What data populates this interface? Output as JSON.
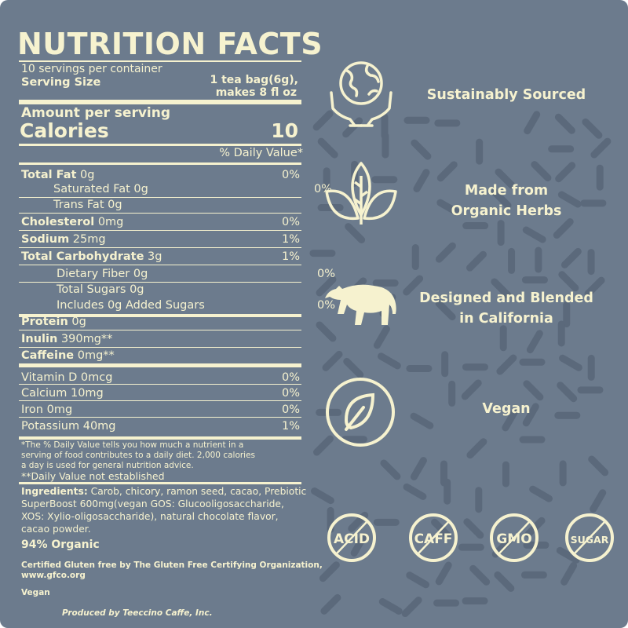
{
  "colors": {
    "background": "#6c7b8d",
    "text": "#f6f2cf",
    "pattern": "#5b697b"
  },
  "label": {
    "title": "NUTRITION FACTS",
    "servings": "10 servings per container",
    "serving_size_label": "Serving Size",
    "serving_size_value_1": "1 tea bag(6g),",
    "serving_size_value_2": "makes 8 fl oz",
    "amount_per_serving": "Amount per serving",
    "calories_label": "Calories",
    "calories_value": "10",
    "daily_value_header": "% Daily Value*",
    "nutrients": [
      {
        "name": "Total Fat",
        "amount": "0g",
        "dv": "0%",
        "bold": true,
        "indent": 0
      },
      {
        "name": "Saturated Fat 0g",
        "amount": "",
        "dv": "0%",
        "bold": false,
        "indent": 1
      },
      {
        "name": "Trans Fat 0g",
        "amount": "",
        "dv": "",
        "bold": false,
        "indent": 1
      },
      {
        "name": "Cholesterol",
        "amount": "0mg",
        "dv": "0%",
        "bold": true,
        "indent": 0
      },
      {
        "name": "Sodium",
        "amount": "25mg",
        "dv": "1%",
        "bold": true,
        "indent": 0
      },
      {
        "name": "Total Carbohydrate",
        "amount": "3g",
        "dv": "1%",
        "bold": true,
        "indent": 0
      },
      {
        "name": "Dietary Fiber 0g",
        "amount": "",
        "dv": "0%",
        "bold": false,
        "indent": 1
      },
      {
        "name": "Total Sugars 0g",
        "amount": "",
        "dv": "",
        "bold": false,
        "indent": 1
      },
      {
        "name": "Includes 0g Added Sugars",
        "amount": "",
        "dv": "0%",
        "bold": false,
        "indent": 1
      },
      {
        "name": "Protein",
        "amount": "0g",
        "dv": "",
        "bold": true,
        "indent": 0
      },
      {
        "name": "Inulin",
        "amount": "390mg**",
        "dv": "",
        "bold": true,
        "indent": 0
      },
      {
        "name": "Caffeine",
        "amount": "0mg**",
        "dv": "",
        "bold": true,
        "indent": 0
      },
      {
        "name": "Vitamin D 0mcg",
        "amount": "",
        "dv": "0%",
        "bold": false,
        "indent": 0
      },
      {
        "name": "Calcium 10mg",
        "amount": "",
        "dv": "0%",
        "bold": false,
        "indent": 0
      },
      {
        "name": "Iron  0mg",
        "amount": "",
        "dv": "0%",
        "bold": false,
        "indent": 0
      },
      {
        "name": "Potassium  40mg",
        "amount": "",
        "dv": "1%",
        "bold": false,
        "indent": 0
      }
    ],
    "footnote_1": "*The % Daily Value tells you how much a nutrient in a",
    "footnote_2": "serving of food contributes to a daily diet. 2,000 calories",
    "footnote_3": "a day is used for general nutrition advice.",
    "footnote_4": "**Daily Value not established",
    "ingredients_label": "Ingredients:",
    "ingredients_1": " Carob, chicory, ramon seed, cacao, Prebiotic",
    "ingredients_2": "SuperBoost 600mg(vegan GOS: Glucooligosaccharide,",
    "ingredients_3": "XOS: Xylio-oligosaccharide), natural chocolate flavor,",
    "ingredients_4": "cacao powder.",
    "organic": "94% Organic",
    "gluten_1": "Certified Gluten free by The Gluten Free Certifying Organization,",
    "gluten_2": "www.gfco.org",
    "vegan": "Vegan",
    "producer": "Produced by Teeccino Caffe, Inc."
  },
  "features": [
    {
      "icon": "globe-in-hands-icon",
      "line1": "Sustainably Sourced",
      "line2": ""
    },
    {
      "icon": "herb-leaves-icon",
      "line1": "Made from",
      "line2": "Organic Herbs"
    },
    {
      "icon": "bear-icon",
      "line1": "Designed and Blended",
      "line2": "in California"
    },
    {
      "icon": "leaf-circle-icon",
      "line1": "Vegan",
      "line2": ""
    }
  ],
  "badges": [
    "ACID",
    "CAFF",
    "GMO",
    "SUGAR"
  ]
}
